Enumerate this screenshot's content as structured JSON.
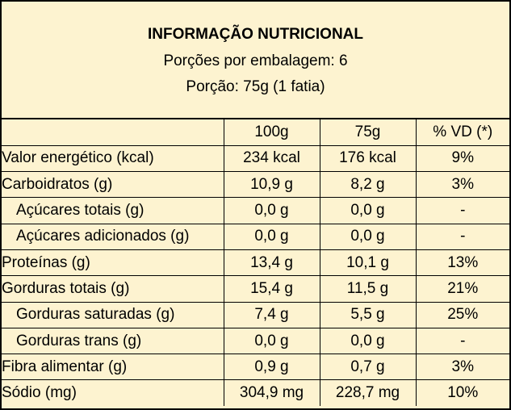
{
  "header": {
    "title": "INFORMAÇÃO NUTRICIONAL",
    "servings_per_package": "Porções por embalagem: 6",
    "serving_size": "Porção: 75g (1 fatia)"
  },
  "table": {
    "columns": [
      "",
      "100g",
      "75g",
      "% VD (*)"
    ],
    "rows": [
      {
        "name": "Valor energético (kcal)",
        "indent": false,
        "per100": "234 kcal",
        "per_serving": "176 kcal",
        "dv": "9%"
      },
      {
        "name": "Carboidratos (g)",
        "indent": false,
        "per100": "10,9 g",
        "per_serving": "8,2 g",
        "dv": "3%"
      },
      {
        "name": "Açúcares totais (g)",
        "indent": true,
        "per100": "0,0 g",
        "per_serving": "0,0 g",
        "dv": "-"
      },
      {
        "name": "Açúcares adicionados (g)",
        "indent": true,
        "per100": "0,0 g",
        "per_serving": "0,0 g",
        "dv": "-"
      },
      {
        "name": "Proteínas (g)",
        "indent": false,
        "per100": "13,4 g",
        "per_serving": "10,1 g",
        "dv": "13%"
      },
      {
        "name": "Gorduras totais (g)",
        "indent": false,
        "per100": "15,4 g",
        "per_serving": "11,5 g",
        "dv": "21%"
      },
      {
        "name": "Gorduras saturadas (g)",
        "indent": true,
        "per100": "7,4 g",
        "per_serving": "5,5 g",
        "dv": "25%"
      },
      {
        "name": "Gorduras trans (g)",
        "indent": true,
        "per100": "0,0 g",
        "per_serving": "0,0 g",
        "dv": "-"
      },
      {
        "name": "Fibra alimentar (g)",
        "indent": false,
        "per100": "0,9 g",
        "per_serving": "0,7 g",
        "dv": "3%"
      },
      {
        "name": "Sódio (mg)",
        "indent": false,
        "per100": "304,9 mg",
        "per_serving": "228,7 mg",
        "dv": "10%"
      }
    ]
  },
  "colors": {
    "background": "#fdf3d0",
    "border": "#000000"
  }
}
